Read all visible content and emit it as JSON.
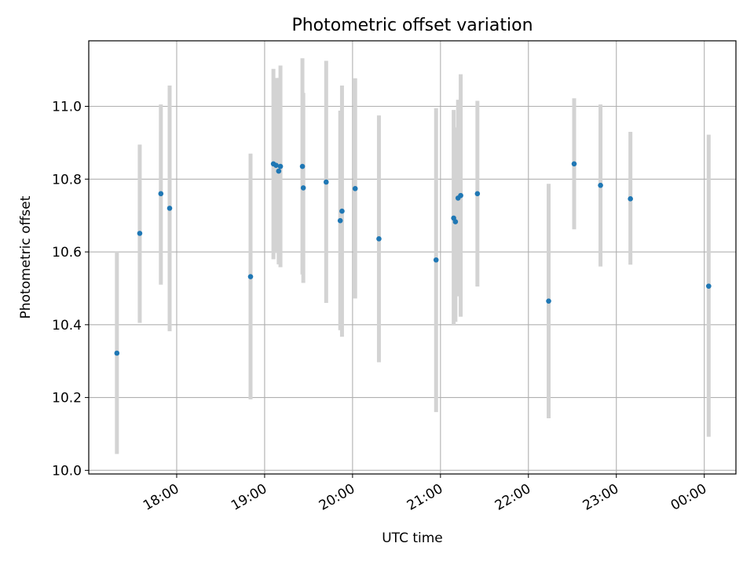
{
  "chart_data": {
    "type": "scatter",
    "title": "Photometric offset variation",
    "xlabel": "UTC time",
    "ylabel": "Photometric offset",
    "grid": true,
    "xlim_hours": [
      17.0,
      24.36
    ],
    "ylim": [
      9.99,
      11.18
    ],
    "x_ticks": [
      {
        "hours": 18,
        "label": "18:00"
      },
      {
        "hours": 19,
        "label": "19:00"
      },
      {
        "hours": 20,
        "label": "20:00"
      },
      {
        "hours": 21,
        "label": "21:00"
      },
      {
        "hours": 22,
        "label": "22:00"
      },
      {
        "hours": 23,
        "label": "23:00"
      },
      {
        "hours": 24,
        "label": "00:00"
      }
    ],
    "y_ticks": [
      {
        "value": 10.0,
        "label": "10.0"
      },
      {
        "value": 10.2,
        "label": "10.2"
      },
      {
        "value": 10.4,
        "label": "10.4"
      },
      {
        "value": 10.6,
        "label": "10.6"
      },
      {
        "value": 10.8,
        "label": "10.8"
      },
      {
        "value": 11.0,
        "label": "11.0"
      }
    ],
    "point_color": "#1f77b4",
    "errorbar_color": "#d3d3d3",
    "series": [
      {
        "name": "offset",
        "points": [
          {
            "t": 17.32,
            "y": 10.322,
            "lo": 10.045,
            "hi": 10.6
          },
          {
            "t": 17.58,
            "y": 10.651,
            "lo": 10.405,
            "hi": 10.895
          },
          {
            "t": 17.82,
            "y": 10.76,
            "lo": 10.51,
            "hi": 11.005
          },
          {
            "t": 17.92,
            "y": 10.72,
            "lo": 10.382,
            "hi": 11.057
          },
          {
            "t": 18.84,
            "y": 10.532,
            "lo": 10.195,
            "hi": 10.87
          },
          {
            "t": 19.1,
            "y": 10.842,
            "lo": 10.58,
            "hi": 11.103
          },
          {
            "t": 19.13,
            "y": 10.838,
            "lo": 10.597,
            "hi": 11.078
          },
          {
            "t": 19.16,
            "y": 10.822,
            "lo": 10.566,
            "hi": 11.078
          },
          {
            "t": 19.18,
            "y": 10.835,
            "lo": 10.558,
            "hi": 11.112
          },
          {
            "t": 19.43,
            "y": 10.835,
            "lo": 10.538,
            "hi": 11.132
          },
          {
            "t": 19.44,
            "y": 10.776,
            "lo": 10.515,
            "hi": 11.037
          },
          {
            "t": 19.7,
            "y": 10.792,
            "lo": 10.46,
            "hi": 11.125
          },
          {
            "t": 19.86,
            "y": 10.686,
            "lo": 10.385,
            "hi": 10.988
          },
          {
            "t": 19.88,
            "y": 10.712,
            "lo": 10.367,
            "hi": 11.057
          },
          {
            "t": 20.03,
            "y": 10.774,
            "lo": 10.472,
            "hi": 11.077
          },
          {
            "t": 20.3,
            "y": 10.636,
            "lo": 10.297,
            "hi": 10.975
          },
          {
            "t": 20.95,
            "y": 10.578,
            "lo": 10.16,
            "hi": 10.995
          },
          {
            "t": 21.15,
            "y": 10.693,
            "lo": 10.398,
            "hi": 10.99
          },
          {
            "t": 21.17,
            "y": 10.683,
            "lo": 10.408,
            "hi": 10.942
          },
          {
            "t": 21.2,
            "y": 10.748,
            "lo": 10.478,
            "hi": 11.018
          },
          {
            "t": 21.23,
            "y": 10.755,
            "lo": 10.422,
            "hi": 11.088
          },
          {
            "t": 21.42,
            "y": 10.76,
            "lo": 10.505,
            "hi": 11.015
          },
          {
            "t": 22.23,
            "y": 10.465,
            "lo": 10.143,
            "hi": 10.787
          },
          {
            "t": 22.52,
            "y": 10.842,
            "lo": 10.662,
            "hi": 11.022
          },
          {
            "t": 22.82,
            "y": 10.783,
            "lo": 10.56,
            "hi": 11.005
          },
          {
            "t": 23.16,
            "y": 10.746,
            "lo": 10.565,
            "hi": 10.93
          },
          {
            "t": 24.05,
            "y": 10.506,
            "lo": 10.092,
            "hi": 10.922
          }
        ]
      }
    ]
  }
}
